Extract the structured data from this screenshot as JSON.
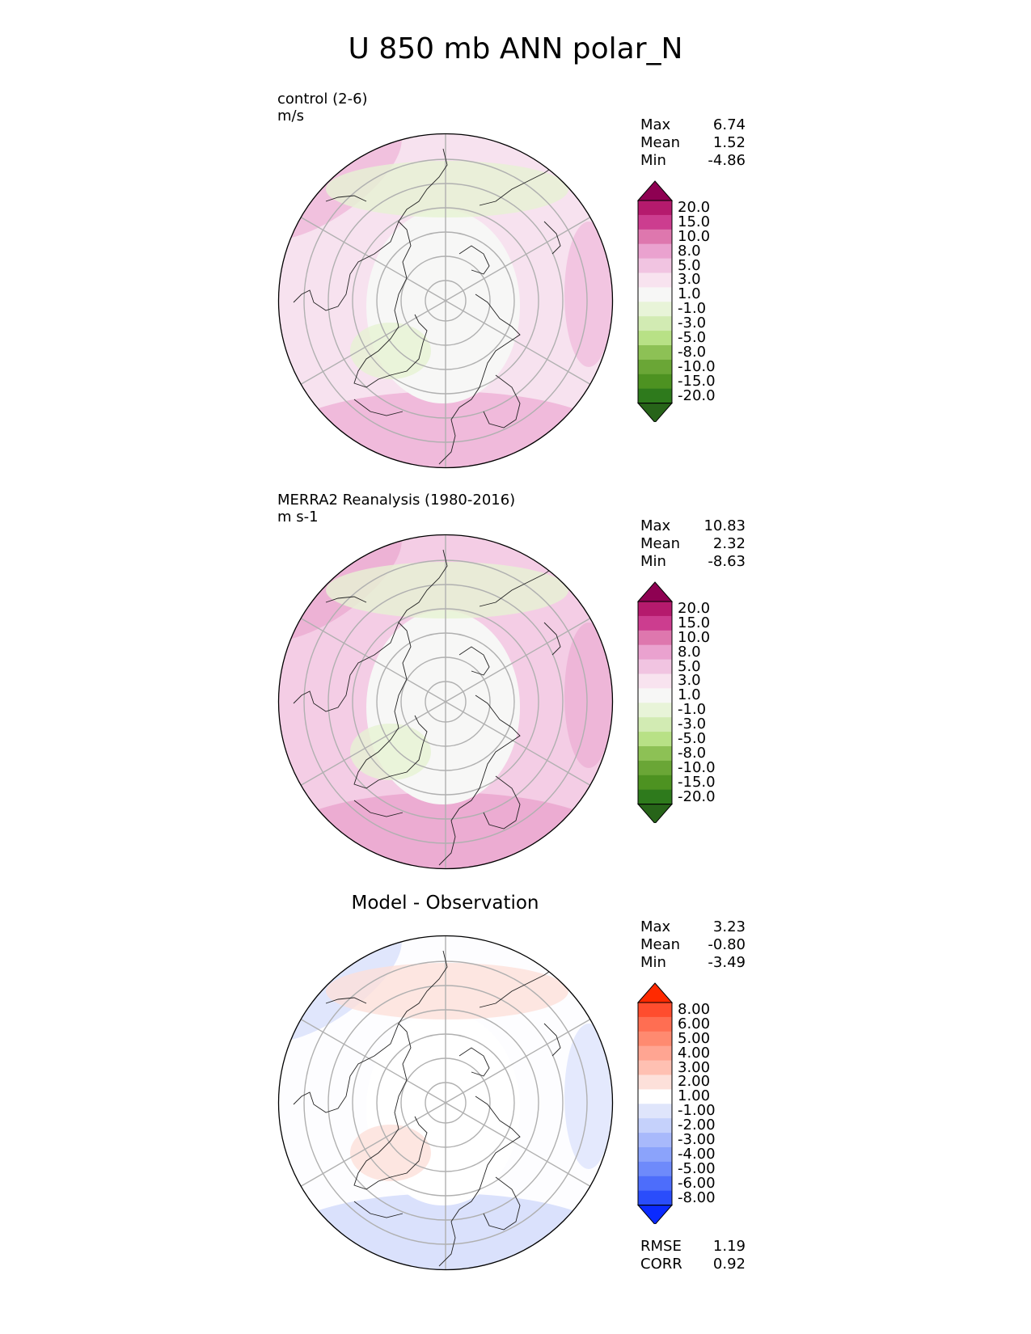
{
  "figure": {
    "title": "U 850 mb ANN polar_N"
  },
  "panels": [
    {
      "id": "control",
      "title": "control (2-6)",
      "units": "m/s",
      "stats": {
        "max_label": "Max",
        "max": "6.74",
        "mean_label": "Mean",
        "mean": "1.52",
        "min_label": "Min",
        "min": "-4.86"
      },
      "colorbar": {
        "labels": [
          "20.0",
          "15.0",
          "10.0",
          "8.0",
          "5.0",
          "3.0",
          "1.0",
          "-1.0",
          "-3.0",
          "-5.0",
          "-8.0",
          "-10.0",
          "-15.0",
          "-20.0"
        ],
        "colors": [
          "#8e0152",
          "#b51a6d",
          "#cc3d8f",
          "#de77ae",
          "#eaa2cf",
          "#f1c4e1",
          "#f8e3ef",
          "#f7f7f6",
          "#e8f4d8",
          "#d2ebb3",
          "#b8e186",
          "#8dc155",
          "#6aa636",
          "#4d9221",
          "#2e7a1c",
          "#276419"
        ]
      },
      "map_fill": {
        "ocean_base": "#f7e2ef",
        "outer_ring": "#eeb3d7",
        "center": "#f7f7f6",
        "green_patch": "#e6f2d3"
      }
    },
    {
      "id": "merra2",
      "title": "MERRA2 Reanalysis (1980-2016)",
      "units": "m s-1",
      "stats": {
        "max_label": "Max",
        "max": "10.83",
        "mean_label": "Mean",
        "mean": "2.32",
        "min_label": "Min",
        "min": "-8.63"
      },
      "colorbar": {
        "labels": [
          "20.0",
          "15.0",
          "10.0",
          "8.0",
          "5.0",
          "3.0",
          "1.0",
          "-1.0",
          "-3.0",
          "-5.0",
          "-8.0",
          "-10.0",
          "-15.0",
          "-20.0"
        ],
        "colors": [
          "#8e0152",
          "#b51a6d",
          "#cc3d8f",
          "#de77ae",
          "#eaa2cf",
          "#f1c4e1",
          "#f8e3ef",
          "#f7f7f6",
          "#e8f4d8",
          "#d2ebb3",
          "#b8e186",
          "#8dc155",
          "#6aa636",
          "#4d9221",
          "#2e7a1c",
          "#276419"
        ]
      },
      "map_fill": {
        "ocean_base": "#f4cde5",
        "outer_ring": "#eaa6cf",
        "center": "#f7f7f6",
        "green_patch": "#e6f2d3"
      }
    },
    {
      "id": "diff",
      "title": "Model - Observation",
      "stats": {
        "max_label": "Max",
        "max": "3.23",
        "mean_label": "Mean",
        "mean": "-0.80",
        "min_label": "Min",
        "min": "-3.49"
      },
      "colorbar": {
        "labels": [
          "8.00",
          "6.00",
          "5.00",
          "4.00",
          "3.00",
          "2.00",
          "1.00",
          "-1.00",
          "-2.00",
          "-3.00",
          "-4.00",
          "-5.00",
          "-6.00",
          "-8.00"
        ],
        "colors": [
          "#ff2a00",
          "#ff4d2e",
          "#ff6e52",
          "#ff8a70",
          "#ffa592",
          "#ffc0b2",
          "#fde0da",
          "#ffffff",
          "#dfe5fb",
          "#c5d1fb",
          "#a8b9fb",
          "#8ba3fb",
          "#6e8afb",
          "#4d6dfb",
          "#2a4dfb",
          "#0a2aff"
        ]
      },
      "fit": {
        "rmse_label": "RMSE",
        "rmse": "1.19",
        "corr_label": "CORR",
        "corr": "0.92"
      },
      "map_fill": {
        "ocean_base": "#fdfdff",
        "outer_ring": "#d3dcfb",
        "center": "#ffffff",
        "green_patch": "#fde0da"
      }
    }
  ]
}
